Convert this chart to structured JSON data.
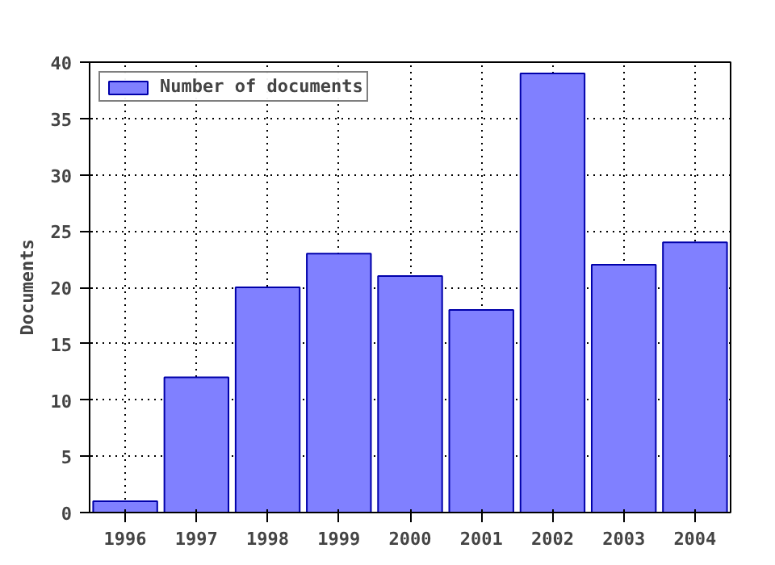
{
  "chart_data": {
    "type": "bar",
    "ylabel": "Documents",
    "x": [
      1996,
      1997,
      1998,
      1999,
      2000,
      2001,
      2002,
      2003,
      2004
    ],
    "series": [
      {
        "name": "Number of documents",
        "color": "#8080ff",
        "values": [
          1,
          12,
          20,
          23,
          21,
          18,
          39,
          22,
          24
        ]
      }
    ],
    "xlim": [
      1995.5,
      2004.5
    ],
    "xticks": [
      1996,
      1997,
      1998,
      1999,
      2000,
      2001,
      2002,
      2003,
      2004
    ],
    "ylim": [
      0,
      40
    ],
    "yticks": [
      0,
      5,
      10,
      15,
      20,
      25,
      30,
      35,
      40
    ],
    "grid": true,
    "legend": "top left",
    "line_style": "dotted"
  }
}
